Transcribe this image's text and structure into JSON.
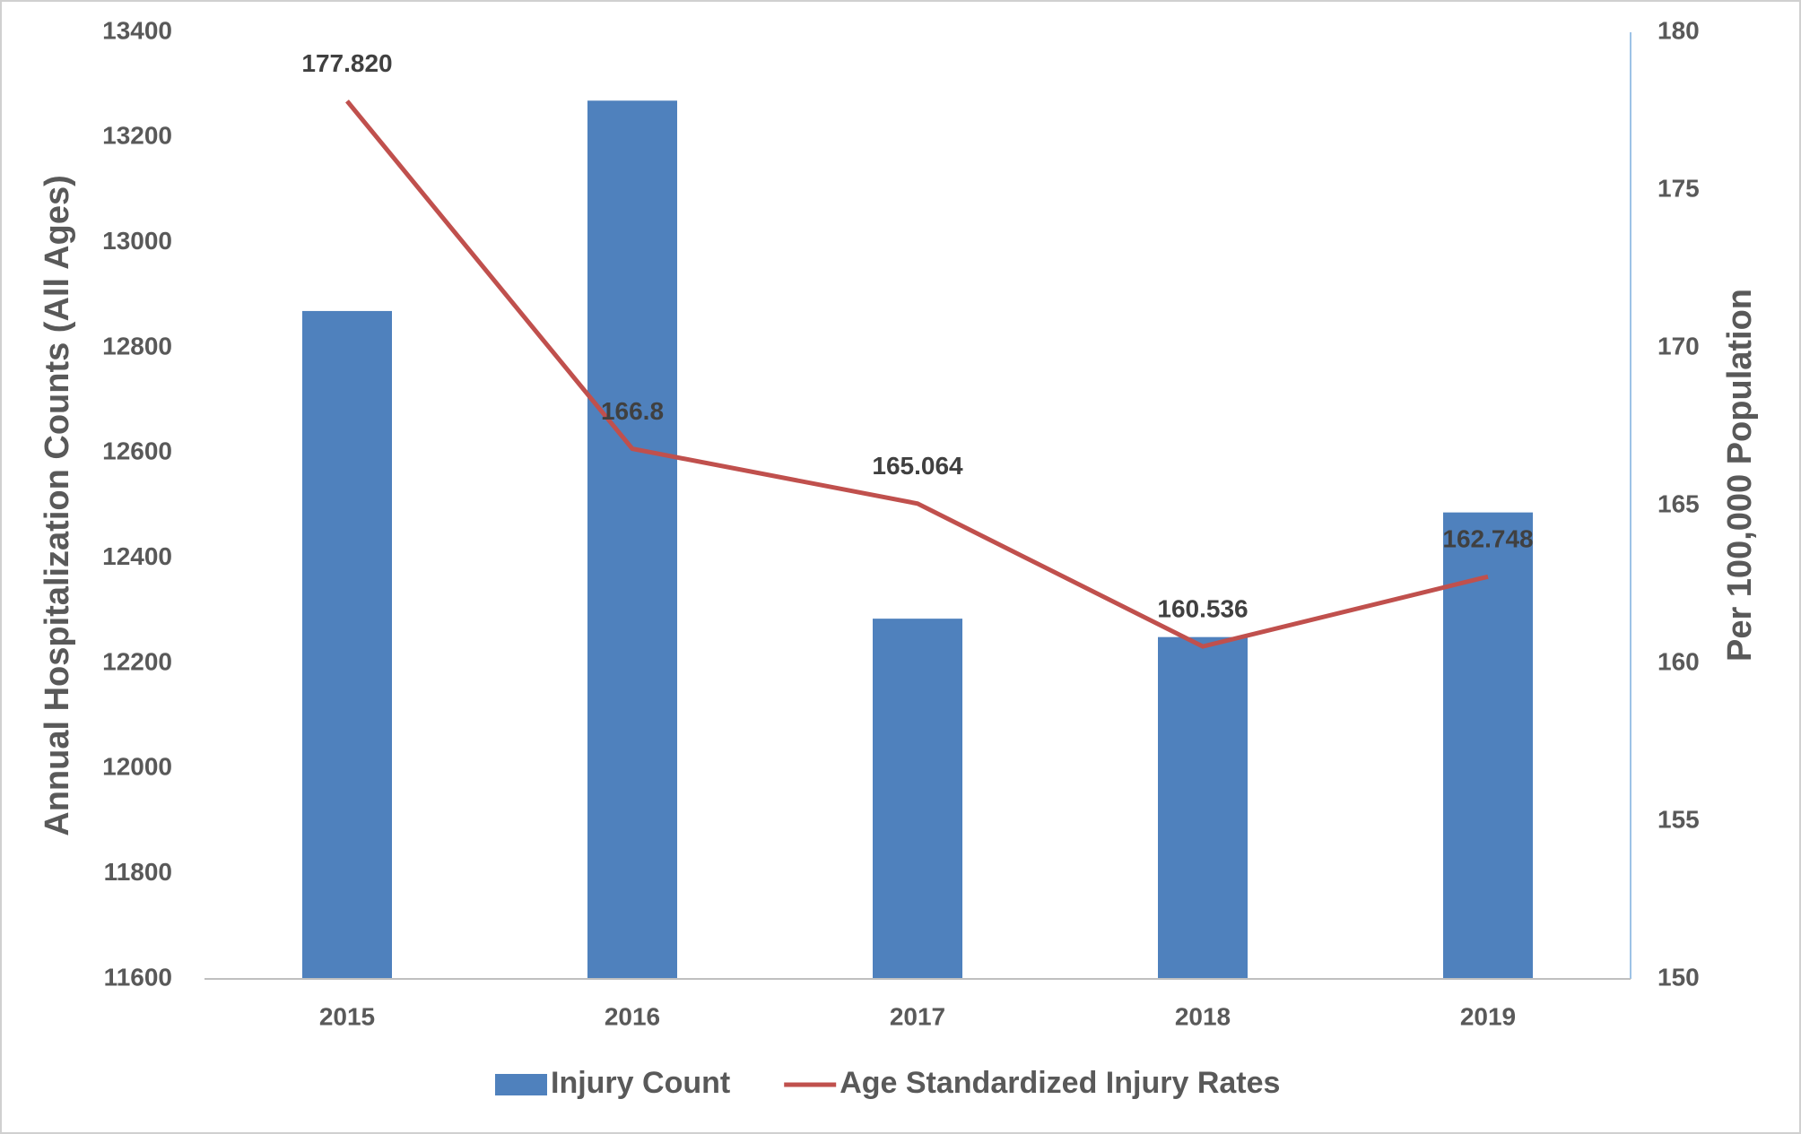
{
  "chart_data": {
    "type": "bar_line",
    "categories": [
      "2015",
      "2016",
      "2017",
      "2018",
      "2019"
    ],
    "series": [
      {
        "name": "Injury Count",
        "type": "bar",
        "color": "#4f81bd",
        "values": [
          12870,
          13270,
          12285,
          12250,
          12487
        ]
      },
      {
        "name": "Age Standardized Injury Rates",
        "type": "line",
        "axis": "y2",
        "color": "#c0504d",
        "values": [
          177.82,
          166.8,
          165.064,
          160.536,
          162.748
        ],
        "value_labels": [
          "177.820",
          "166.8",
          "165.064",
          "160.536",
          "162.748"
        ]
      }
    ],
    "ylabel": "Annual Hospitalization Counts (All Ages)",
    "y2label": "Per 100,000 Population",
    "ylim": [
      11600,
      13400
    ],
    "yticks": [
      11600,
      11800,
      12000,
      12200,
      12400,
      12600,
      12800,
      13000,
      13200,
      13400
    ],
    "y2lim": [
      150,
      180
    ],
    "y2ticks": [
      150,
      155,
      160,
      165,
      170,
      175,
      180
    ],
    "grid": false,
    "legend": "bottom"
  }
}
